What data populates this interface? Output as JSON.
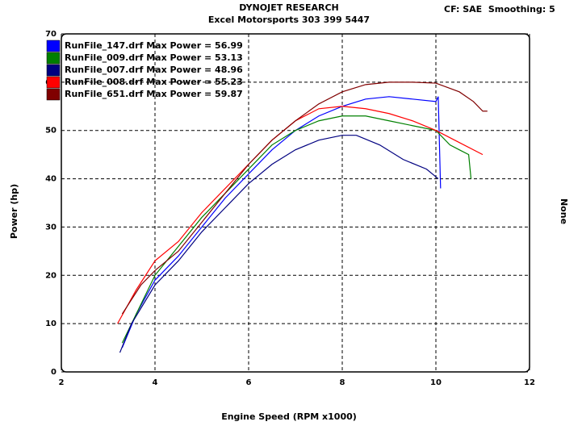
{
  "chart_data": {
    "type": "line",
    "title": "DYNOJET RESEARCH",
    "subtitle": "Excel Motorsports 303 399 5447",
    "annotation": "CF: SAE  Smoothing: 5",
    "x_label": "Engine Speed (RPM x1000)",
    "y_label": "Power (hp)",
    "y2_label": "None",
    "xlim": [
      2,
      12
    ],
    "xticks": [
      2,
      4,
      6,
      8,
      10,
      12
    ],
    "ylim": [
      0,
      70
    ],
    "yticks": [
      0,
      10,
      20,
      30,
      40,
      50,
      60,
      70
    ],
    "grid": true,
    "legend": "top-left",
    "series": [
      {
        "name": "RunFile_147.drf Max Power = 56.99",
        "color": "#0000ff",
        "x": [
          3.3,
          3.6,
          4,
          4.5,
          5,
          5.5,
          6,
          6.5,
          7,
          7.5,
          8,
          8.5,
          9,
          9.5,
          10,
          10.05,
          10.1
        ],
        "values": [
          5,
          12,
          19,
          24,
          30,
          36,
          41,
          46,
          50,
          53,
          55,
          56.5,
          57,
          56.5,
          56,
          57,
          38
        ]
      },
      {
        "name": "RunFile_009.drf Max Power = 53.13",
        "color": "#008000",
        "x": [
          3.3,
          4,
          4.5,
          5,
          5.5,
          6,
          6.5,
          7,
          7.5,
          8,
          8.5,
          9,
          9.5,
          10,
          10.3,
          10.5,
          10.7,
          10.75
        ],
        "values": [
          6,
          20,
          26,
          32,
          37,
          42,
          47,
          50,
          52,
          53,
          53,
          52,
          51,
          50,
          47,
          46,
          45,
          40
        ]
      },
      {
        "name": "RunFile_007.drf Max Power = 48.96",
        "color": "#000080",
        "x": [
          3.25,
          3.5,
          4,
          4.5,
          5,
          5.5,
          6,
          6.5,
          7,
          7.5,
          8,
          8.3,
          8.8,
          9.3,
          9.8,
          10.05
        ],
        "values": [
          4,
          10,
          18,
          23,
          29,
          34,
          39,
          43,
          46,
          48,
          49,
          49,
          47,
          44,
          42,
          40
        ]
      },
      {
        "name": "RunFile_008.drf Max Power = 55.23",
        "color": "#ff0000",
        "x": [
          3.2,
          3.6,
          4,
          4.5,
          5,
          5.5,
          6,
          6.5,
          7,
          7.5,
          8,
          8.5,
          9,
          9.5,
          10,
          10.5,
          11
        ],
        "values": [
          10,
          17,
          23,
          27,
          33,
          38,
          43,
          48,
          52,
          54.5,
          55,
          54.5,
          53.5,
          52,
          50,
          47.5,
          45
        ]
      },
      {
        "name": "RunFile_651.drf Max Power = 59.87",
        "color": "#800000",
        "x": [
          3.3,
          3.7,
          4,
          4.5,
          5,
          5.5,
          6,
          6.5,
          7,
          7.5,
          8,
          8.5,
          9,
          9.5,
          10,
          10.5,
          10.8,
          11,
          11.1
        ],
        "values": [
          12,
          18,
          21,
          25,
          31,
          37,
          43,
          48,
          52,
          55.5,
          58,
          59.5,
          60,
          60,
          59.8,
          58,
          56,
          54,
          54
        ]
      }
    ]
  }
}
